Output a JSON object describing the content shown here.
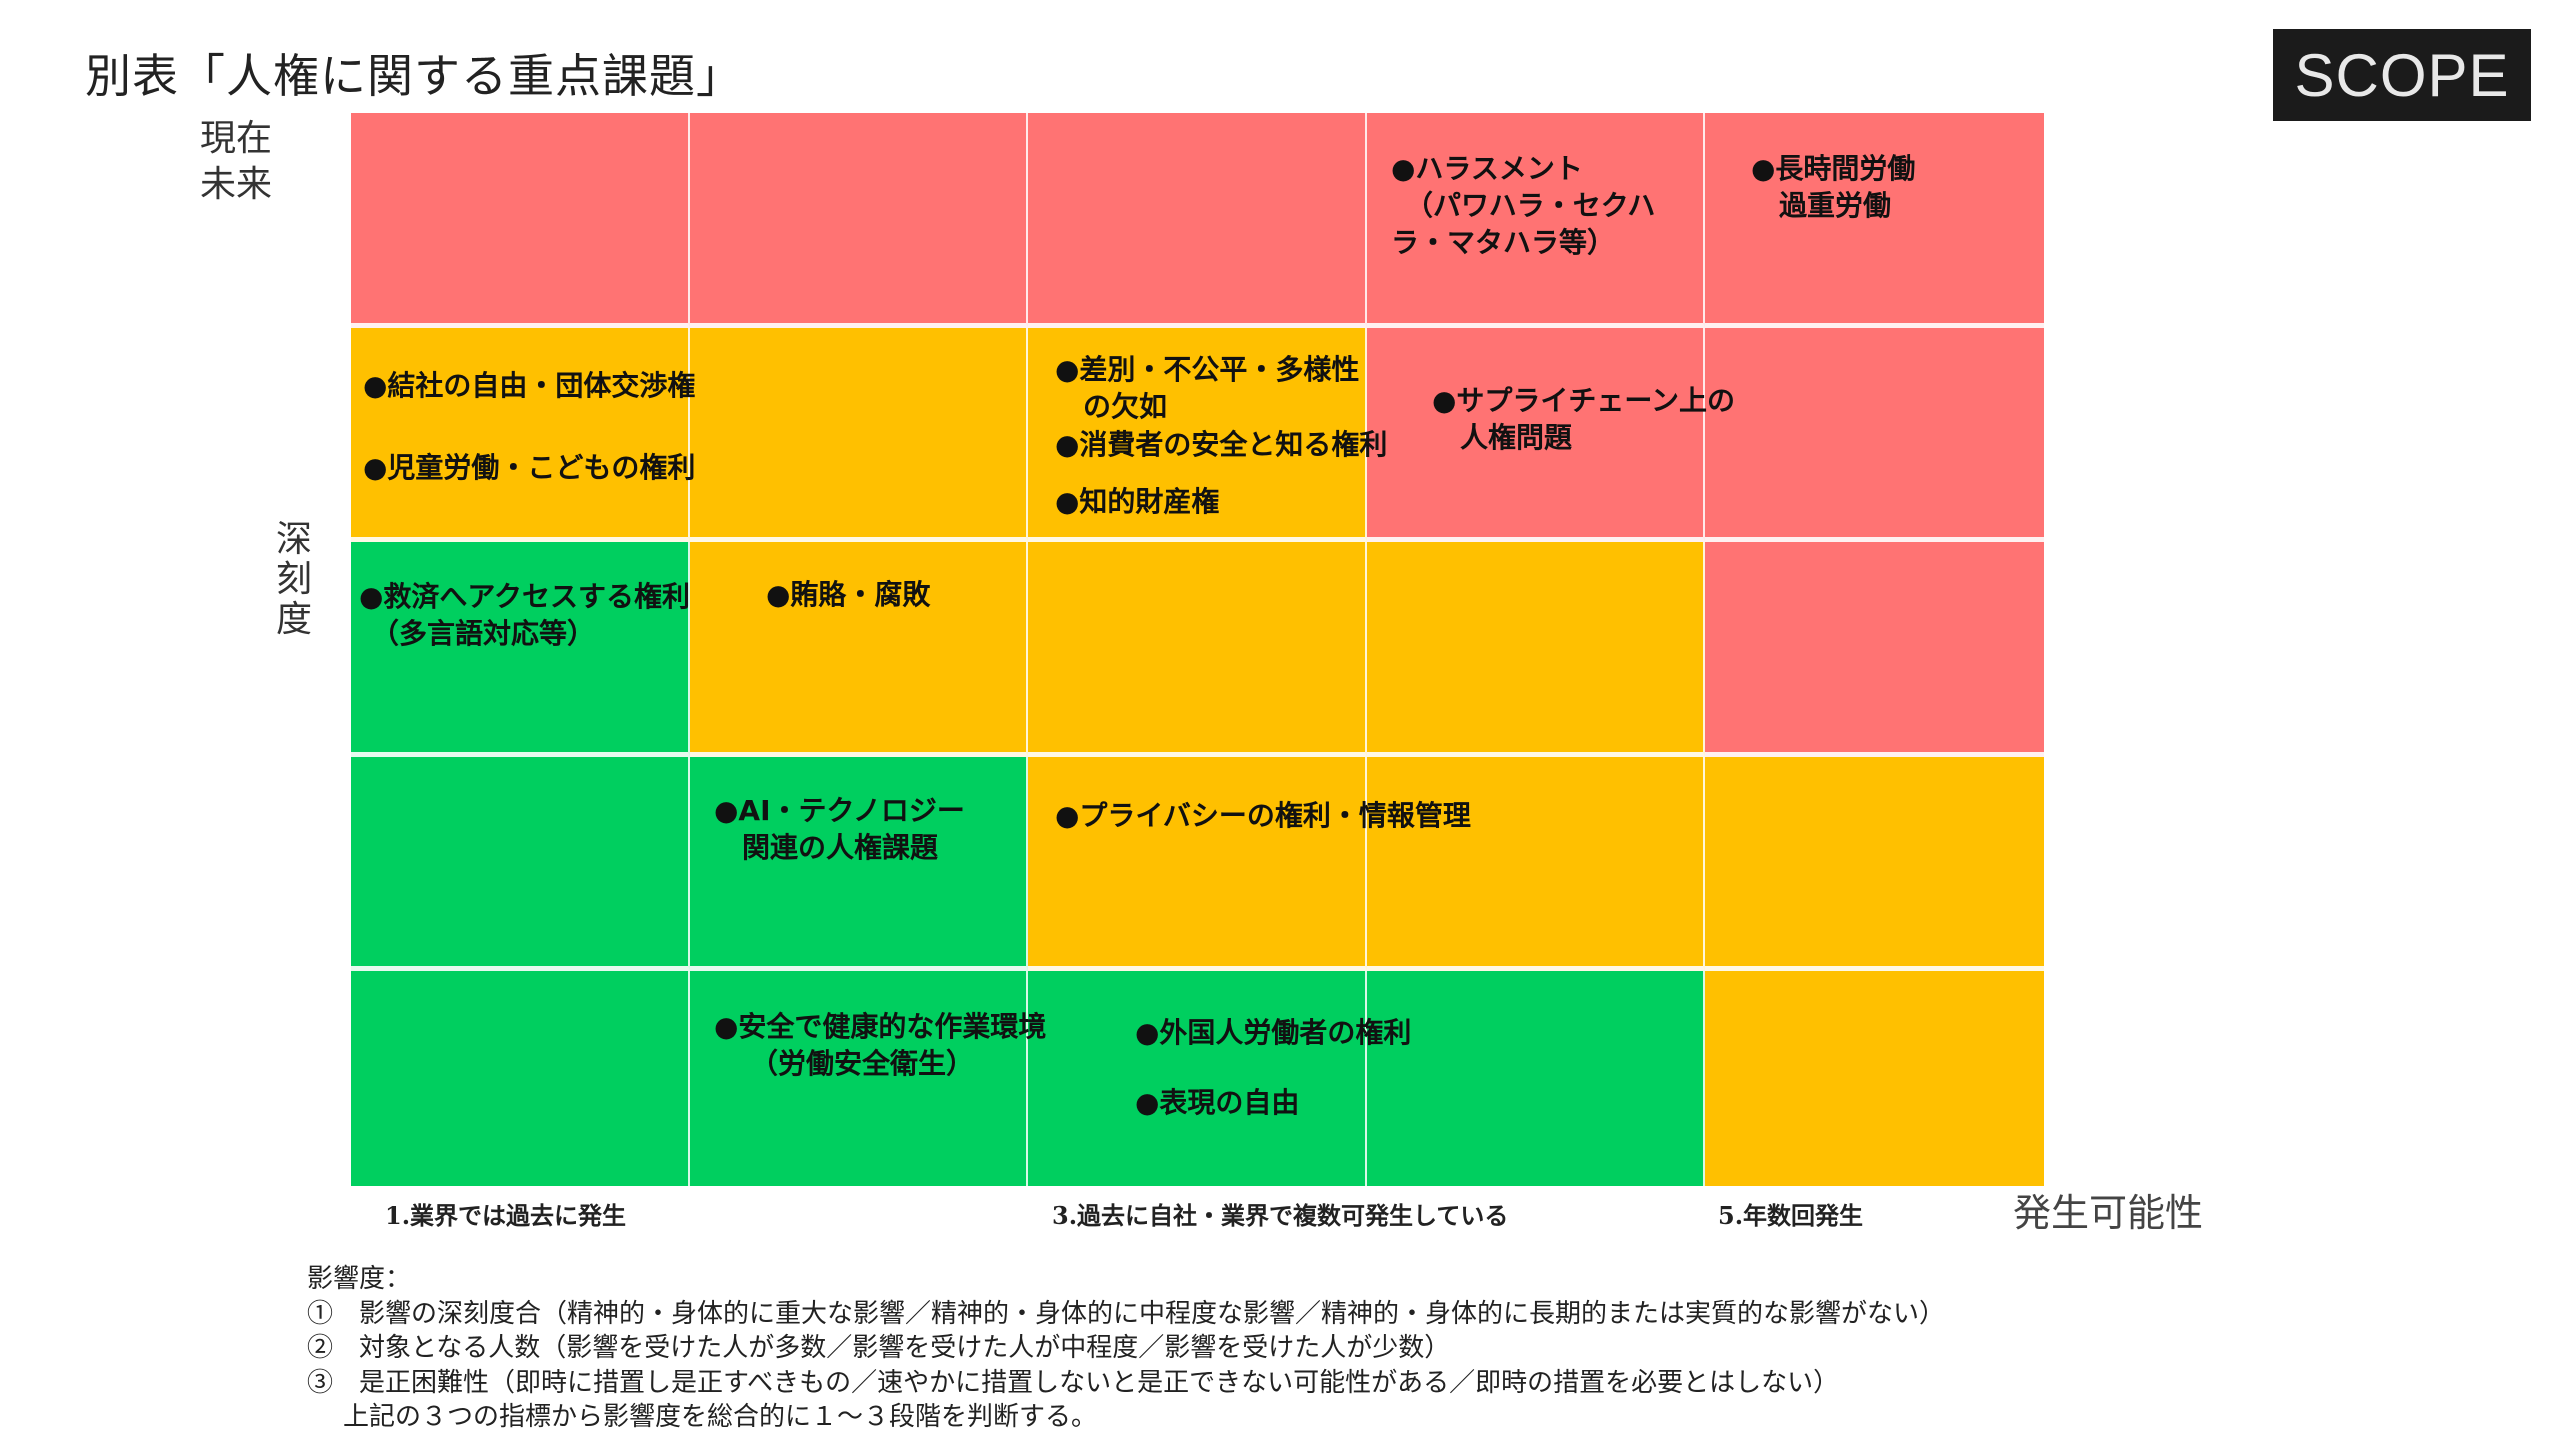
{
  "title": "別表「人権に関する重点課題」",
  "logo": "SCOPE",
  "time_label": [
    "現在",
    "未来"
  ],
  "severity_label": "深刻度",
  "grid": {
    "colors": {
      "red": "#FF7373",
      "yellow": "#FFC000",
      "green": "#00CF5F"
    },
    "cells": [
      [
        "red",
        "red",
        "red",
        "red",
        "red"
      ],
      [
        "yellow",
        "yellow",
        "yellow",
        "red",
        "red"
      ],
      [
        "green",
        "yellow",
        "yellow",
        "yellow",
        "red"
      ],
      [
        "green",
        "green",
        "yellow",
        "yellow",
        "yellow"
      ],
      [
        "green",
        "green",
        "green",
        "green",
        "yellow"
      ]
    ]
  },
  "items": [
    {
      "lines": [
        "●ハラスメント",
        "（パワハラ・セクハ",
        "ラ・マタハラ等）"
      ]
    },
    {
      "lines": [
        "●長時間労働",
        "過重労働"
      ]
    },
    {
      "lines": [
        "●結社の自由・団体交渉権"
      ]
    },
    {
      "lines": [
        "●児童労働・こどもの権利"
      ]
    },
    {
      "lines": [
        "●差別・不公平・多様性",
        "の欠如"
      ]
    },
    {
      "lines": [
        "●消費者の安全と知る権利"
      ]
    },
    {
      "lines": [
        "●知的財産権"
      ]
    },
    {
      "lines": [
        "●サプライチェーン上の",
        "人権問題"
      ]
    },
    {
      "lines": [
        "●救済へアクセスする権利",
        "（多言語対応等）"
      ]
    },
    {
      "lines": [
        "●賄賂・腐敗"
      ]
    },
    {
      "lines": [
        "●AI・テクノロジー",
        "関連の人権課題"
      ]
    },
    {
      "lines": [
        "●プライバシーの権利・情報管理"
      ]
    },
    {
      "lines": [
        "●安全で健康的な作業環境",
        "（労働安全衛生）"
      ]
    },
    {
      "lines": [
        "●外国人労働者の権利"
      ]
    },
    {
      "lines": [
        "●表現の自由"
      ]
    }
  ],
  "x_axis": {
    "labels": [
      "1.業界では過去に発生",
      "3.過去に自社・業界で複数可発生している",
      "5.年数回発生"
    ],
    "title": "発生可能性"
  },
  "notes": {
    "heading": "影響度：",
    "lines": [
      "①　影響の深刻度合（精神的・身体的に重大な影響／精神的・身体的に中程度な影響／精神的・身体的に長期的または実質的な影響がない）",
      "②　対象となる人数（影響を受けた人が多数／影響を受けた人が中程度／影響を受けた人が少数）",
      "③　是正困難性（即時に措置し是正すべきもの／速やかに措置しないと是正できない可能性がある／即時の措置を必要とはしない）",
      "上記の３つの指標から影響度を総合的に１～３段階を判断する。"
    ]
  }
}
